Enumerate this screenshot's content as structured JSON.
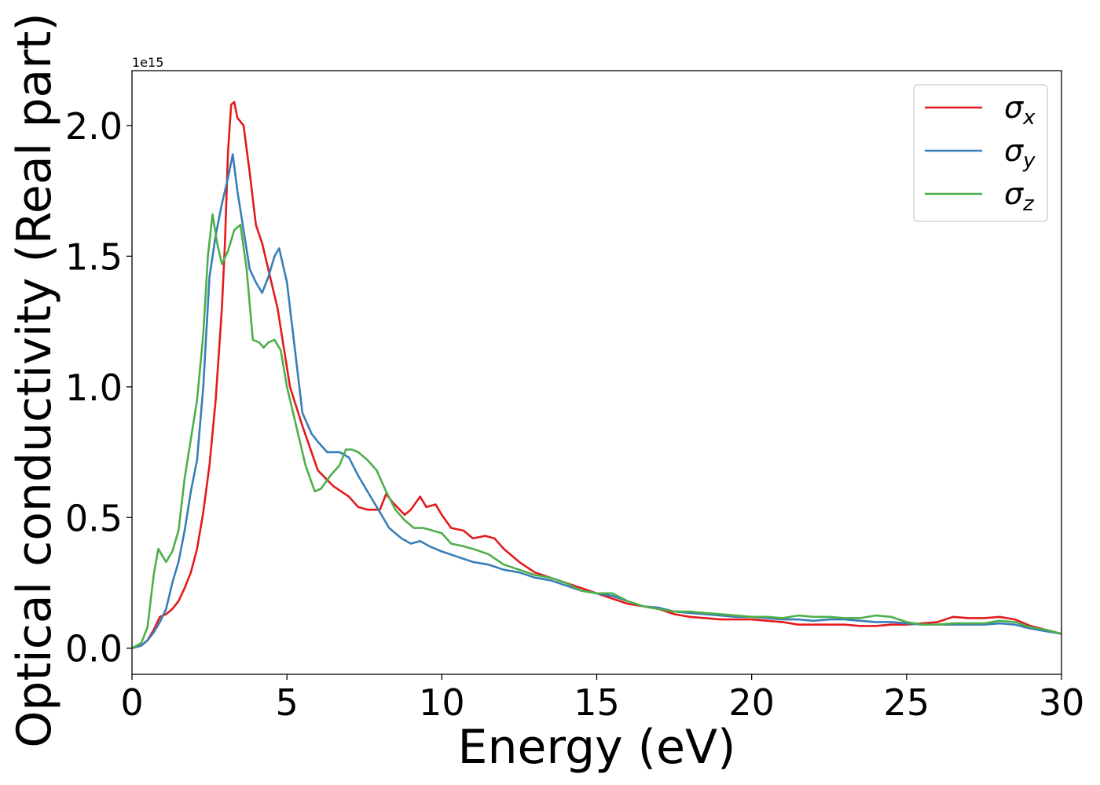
{
  "chart_data": {
    "type": "line",
    "title": "",
    "xlabel": "Energy (eV)",
    "ylabel": "Optical conductivity (Real part)",
    "y_offset_label": "1e15",
    "xlim": [
      0,
      30
    ],
    "ylim": [
      -0.1,
      2.21
    ],
    "x_ticks": [
      0,
      5,
      10,
      15,
      20,
      25,
      30
    ],
    "y_ticks": [
      0.0,
      0.5,
      1.0,
      1.5,
      2.0
    ],
    "x_tick_labels": [
      "0",
      "5",
      "10",
      "15",
      "20",
      "25",
      "30"
    ],
    "y_tick_labels": [
      "0.0",
      "0.5",
      "1.0",
      "1.5",
      "2.0"
    ],
    "grid": false,
    "legend_position": "top-right",
    "series": [
      {
        "name": "σx",
        "symbol": "σ",
        "subscript": "x",
        "color": "#e41a1c",
        "points": [
          [
            0,
            0
          ],
          [
            0.3,
            0.01
          ],
          [
            0.5,
            0.03
          ],
          [
            0.7,
            0.07
          ],
          [
            0.9,
            0.12
          ],
          [
            1.1,
            0.13
          ],
          [
            1.3,
            0.15
          ],
          [
            1.5,
            0.18
          ],
          [
            1.7,
            0.23
          ],
          [
            1.9,
            0.29
          ],
          [
            2.1,
            0.38
          ],
          [
            2.3,
            0.52
          ],
          [
            2.5,
            0.7
          ],
          [
            2.7,
            0.95
          ],
          [
            2.9,
            1.3
          ],
          [
            3.0,
            1.55
          ],
          [
            3.1,
            1.9
          ],
          [
            3.2,
            2.08
          ],
          [
            3.3,
            2.09
          ],
          [
            3.4,
            2.03
          ],
          [
            3.6,
            2.0
          ],
          [
            3.8,
            1.82
          ],
          [
            4.0,
            1.62
          ],
          [
            4.2,
            1.55
          ],
          [
            4.5,
            1.4
          ],
          [
            4.7,
            1.3
          ],
          [
            4.9,
            1.15
          ],
          [
            5.1,
            1.0
          ],
          [
            5.5,
            0.85
          ],
          [
            6.0,
            0.68
          ],
          [
            6.5,
            0.62
          ],
          [
            7.0,
            0.58
          ],
          [
            7.3,
            0.54
          ],
          [
            7.6,
            0.53
          ],
          [
            8.0,
            0.53
          ],
          [
            8.2,
            0.59
          ],
          [
            8.4,
            0.56
          ],
          [
            8.8,
            0.51
          ],
          [
            9.0,
            0.53
          ],
          [
            9.3,
            0.58
          ],
          [
            9.5,
            0.54
          ],
          [
            9.8,
            0.55
          ],
          [
            10.0,
            0.51
          ],
          [
            10.3,
            0.46
          ],
          [
            10.7,
            0.45
          ],
          [
            11.0,
            0.42
          ],
          [
            11.4,
            0.43
          ],
          [
            11.7,
            0.42
          ],
          [
            12.0,
            0.38
          ],
          [
            12.5,
            0.33
          ],
          [
            13,
            0.29
          ],
          [
            13.5,
            0.27
          ],
          [
            14,
            0.25
          ],
          [
            14.5,
            0.23
          ],
          [
            15,
            0.21
          ],
          [
            15.5,
            0.19
          ],
          [
            16,
            0.17
          ],
          [
            16.5,
            0.16
          ],
          [
            17,
            0.15
          ],
          [
            17.5,
            0.13
          ],
          [
            18,
            0.12
          ],
          [
            18.5,
            0.115
          ],
          [
            19,
            0.11
          ],
          [
            19.5,
            0.11
          ],
          [
            20,
            0.11
          ],
          [
            20.5,
            0.105
          ],
          [
            21,
            0.1
          ],
          [
            21.5,
            0.09
          ],
          [
            22,
            0.09
          ],
          [
            22.5,
            0.09
          ],
          [
            23,
            0.09
          ],
          [
            23.5,
            0.085
          ],
          [
            24,
            0.085
          ],
          [
            24.5,
            0.09
          ],
          [
            25,
            0.09
          ],
          [
            25.5,
            0.095
          ],
          [
            26,
            0.1
          ],
          [
            26.5,
            0.12
          ],
          [
            27,
            0.115
          ],
          [
            27.5,
            0.115
          ],
          [
            28,
            0.12
          ],
          [
            28.5,
            0.11
          ],
          [
            29,
            0.085
          ],
          [
            29.5,
            0.07
          ],
          [
            30,
            0.055
          ]
        ]
      },
      {
        "name": "σy",
        "symbol": "σ",
        "subscript": "y",
        "color": "#377eb8",
        "points": [
          [
            0,
            0
          ],
          [
            0.3,
            0.01
          ],
          [
            0.5,
            0.03
          ],
          [
            0.7,
            0.06
          ],
          [
            0.9,
            0.1
          ],
          [
            1.1,
            0.15
          ],
          [
            1.3,
            0.25
          ],
          [
            1.5,
            0.33
          ],
          [
            1.7,
            0.45
          ],
          [
            1.9,
            0.6
          ],
          [
            2.1,
            0.72
          ],
          [
            2.3,
            1.0
          ],
          [
            2.5,
            1.42
          ],
          [
            2.7,
            1.58
          ],
          [
            2.9,
            1.7
          ],
          [
            3.1,
            1.8
          ],
          [
            3.25,
            1.89
          ],
          [
            3.4,
            1.75
          ],
          [
            3.6,
            1.6
          ],
          [
            3.8,
            1.45
          ],
          [
            4.0,
            1.4
          ],
          [
            4.2,
            1.36
          ],
          [
            4.4,
            1.42
          ],
          [
            4.6,
            1.5
          ],
          [
            4.75,
            1.53
          ],
          [
            5.0,
            1.4
          ],
          [
            5.2,
            1.2
          ],
          [
            5.5,
            0.9
          ],
          [
            5.8,
            0.82
          ],
          [
            6.0,
            0.79
          ],
          [
            6.3,
            0.75
          ],
          [
            6.7,
            0.75
          ],
          [
            7.0,
            0.73
          ],
          [
            7.3,
            0.66
          ],
          [
            7.6,
            0.6
          ],
          [
            8.0,
            0.52
          ],
          [
            8.3,
            0.46
          ],
          [
            8.7,
            0.42
          ],
          [
            9.0,
            0.4
          ],
          [
            9.3,
            0.41
          ],
          [
            9.6,
            0.39
          ],
          [
            10.0,
            0.37
          ],
          [
            10.5,
            0.35
          ],
          [
            11,
            0.33
          ],
          [
            11.5,
            0.32
          ],
          [
            12,
            0.3
          ],
          [
            12.5,
            0.29
          ],
          [
            13,
            0.27
          ],
          [
            13.5,
            0.26
          ],
          [
            14,
            0.24
          ],
          [
            14.5,
            0.22
          ],
          [
            15,
            0.21
          ],
          [
            15.5,
            0.2
          ],
          [
            16,
            0.18
          ],
          [
            16.5,
            0.16
          ],
          [
            17,
            0.155
          ],
          [
            17.5,
            0.14
          ],
          [
            18,
            0.135
          ],
          [
            18.5,
            0.13
          ],
          [
            19,
            0.125
          ],
          [
            19.5,
            0.12
          ],
          [
            20,
            0.12
          ],
          [
            20.5,
            0.115
          ],
          [
            21,
            0.11
          ],
          [
            21.5,
            0.11
          ],
          [
            22,
            0.105
          ],
          [
            22.5,
            0.11
          ],
          [
            23,
            0.11
          ],
          [
            23.5,
            0.105
          ],
          [
            24,
            0.1
          ],
          [
            24.5,
            0.1
          ],
          [
            25,
            0.095
          ],
          [
            25.5,
            0.09
          ],
          [
            26,
            0.09
          ],
          [
            26.5,
            0.09
          ],
          [
            27,
            0.09
          ],
          [
            27.5,
            0.09
          ],
          [
            28,
            0.095
          ],
          [
            28.5,
            0.09
          ],
          [
            29,
            0.075
          ],
          [
            29.5,
            0.065
          ],
          [
            30,
            0.055
          ]
        ]
      },
      {
        "name": "σz",
        "symbol": "σ",
        "subscript": "z",
        "color": "#4daf4a",
        "points": [
          [
            0,
            0
          ],
          [
            0.3,
            0.02
          ],
          [
            0.5,
            0.08
          ],
          [
            0.7,
            0.28
          ],
          [
            0.85,
            0.38
          ],
          [
            1.0,
            0.35
          ],
          [
            1.1,
            0.33
          ],
          [
            1.3,
            0.37
          ],
          [
            1.5,
            0.45
          ],
          [
            1.7,
            0.65
          ],
          [
            1.9,
            0.8
          ],
          [
            2.1,
            0.95
          ],
          [
            2.3,
            1.2
          ],
          [
            2.45,
            1.5
          ],
          [
            2.6,
            1.66
          ],
          [
            2.75,
            1.55
          ],
          [
            2.9,
            1.47
          ],
          [
            3.1,
            1.52
          ],
          [
            3.3,
            1.6
          ],
          [
            3.5,
            1.62
          ],
          [
            3.7,
            1.45
          ],
          [
            3.9,
            1.18
          ],
          [
            4.1,
            1.17
          ],
          [
            4.25,
            1.15
          ],
          [
            4.4,
            1.17
          ],
          [
            4.6,
            1.18
          ],
          [
            4.8,
            1.14
          ],
          [
            5.0,
            1.0
          ],
          [
            5.3,
            0.85
          ],
          [
            5.6,
            0.7
          ],
          [
            5.9,
            0.6
          ],
          [
            6.1,
            0.61
          ],
          [
            6.4,
            0.66
          ],
          [
            6.7,
            0.7
          ],
          [
            6.9,
            0.76
          ],
          [
            7.1,
            0.76
          ],
          [
            7.3,
            0.75
          ],
          [
            7.6,
            0.72
          ],
          [
            7.9,
            0.68
          ],
          [
            8.2,
            0.6
          ],
          [
            8.5,
            0.53
          ],
          [
            8.8,
            0.49
          ],
          [
            9.1,
            0.46
          ],
          [
            9.4,
            0.46
          ],
          [
            9.7,
            0.45
          ],
          [
            10.0,
            0.44
          ],
          [
            10.3,
            0.4
          ],
          [
            10.7,
            0.39
          ],
          [
            11.0,
            0.38
          ],
          [
            11.5,
            0.36
          ],
          [
            12,
            0.32
          ],
          [
            12.5,
            0.3
          ],
          [
            13,
            0.28
          ],
          [
            13.5,
            0.27
          ],
          [
            14,
            0.25
          ],
          [
            14.5,
            0.22
          ],
          [
            15,
            0.21
          ],
          [
            15.5,
            0.21
          ],
          [
            16,
            0.18
          ],
          [
            16.5,
            0.16
          ],
          [
            17,
            0.15
          ],
          [
            17.5,
            0.14
          ],
          [
            18,
            0.14
          ],
          [
            18.5,
            0.135
          ],
          [
            19,
            0.13
          ],
          [
            19.5,
            0.125
          ],
          [
            20,
            0.12
          ],
          [
            20.5,
            0.12
          ],
          [
            21,
            0.115
          ],
          [
            21.5,
            0.125
          ],
          [
            22,
            0.12
          ],
          [
            22.5,
            0.12
          ],
          [
            23,
            0.115
          ],
          [
            23.5,
            0.115
          ],
          [
            24,
            0.125
          ],
          [
            24.5,
            0.12
          ],
          [
            25,
            0.1
          ],
          [
            25.5,
            0.09
          ],
          [
            26,
            0.09
          ],
          [
            26.5,
            0.095
          ],
          [
            27,
            0.095
          ],
          [
            27.5,
            0.095
          ],
          [
            28,
            0.105
          ],
          [
            28.5,
            0.1
          ],
          [
            29,
            0.08
          ],
          [
            29.5,
            0.07
          ],
          [
            30,
            0.055
          ]
        ]
      }
    ]
  }
}
